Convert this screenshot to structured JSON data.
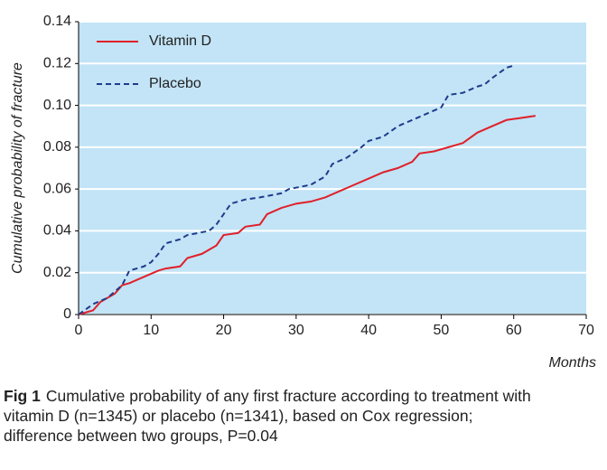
{
  "chart_data": {
    "type": "line",
    "ylabel": "Cumulative probability of fracture",
    "xlabel": "Months",
    "xlim": [
      0,
      70
    ],
    "xticks": [
      0,
      10,
      20,
      30,
      40,
      50,
      60,
      70
    ],
    "ylim": [
      0,
      0.14
    ],
    "yticks": [
      0,
      0.02,
      0.04,
      0.06,
      0.08,
      {
        "value": 0.1,
        "label": "0.10"
      },
      0.12,
      0.14
    ],
    "grid": true,
    "legend": "upper left",
    "background": "#c2e4f6",
    "series": [
      {
        "name": "Vitamin D",
        "color": "#e0202a",
        "dash": false,
        "x": [
          0,
          2,
          3,
          5,
          6,
          7,
          9,
          11,
          12,
          14,
          15,
          17,
          19,
          20,
          22,
          23,
          25,
          26,
          28,
          30,
          32,
          34,
          36,
          38,
          40,
          42,
          44,
          46,
          47,
          49,
          51,
          53,
          55,
          57,
          59,
          61,
          63
        ],
        "values": [
          0,
          0.002,
          0.006,
          0.01,
          0.014,
          0.015,
          0.018,
          0.021,
          0.022,
          0.023,
          0.027,
          0.029,
          0.033,
          0.038,
          0.039,
          0.042,
          0.043,
          0.048,
          0.051,
          0.053,
          0.054,
          0.056,
          0.059,
          0.062,
          0.065,
          0.068,
          0.07,
          0.073,
          0.077,
          0.078,
          0.08,
          0.082,
          0.087,
          0.09,
          0.093,
          0.094,
          0.095
        ]
      },
      {
        "name": "Placebo",
        "color": "#1f3b8c",
        "dash": true,
        "x": [
          0,
          2,
          4,
          5,
          6,
          7,
          9,
          10,
          11,
          12,
          14,
          15,
          18,
          19,
          20,
          21,
          23,
          25,
          28,
          29,
          32,
          34,
          35,
          37,
          39,
          40,
          42,
          44,
          46,
          48,
          50,
          51,
          53,
          55,
          56,
          57,
          59,
          60
        ],
        "values": [
          0,
          0.005,
          0.008,
          0.011,
          0.014,
          0.021,
          0.023,
          0.025,
          0.029,
          0.034,
          0.036,
          0.038,
          0.04,
          0.043,
          0.048,
          0.053,
          0.055,
          0.056,
          0.058,
          0.06,
          0.062,
          0.066,
          0.072,
          0.075,
          0.08,
          0.083,
          0.085,
          0.09,
          0.093,
          0.096,
          0.099,
          0.105,
          0.106,
          0.109,
          0.11,
          0.113,
          0.118,
          0.119
        ]
      }
    ]
  },
  "caption": {
    "label": "Fig 1",
    "text": "Cumulative probability of any first fracture according to treatment with vitamin D (n=1345) or placebo (n=1341), based on Cox regression; difference between two groups, P=0.04"
  }
}
